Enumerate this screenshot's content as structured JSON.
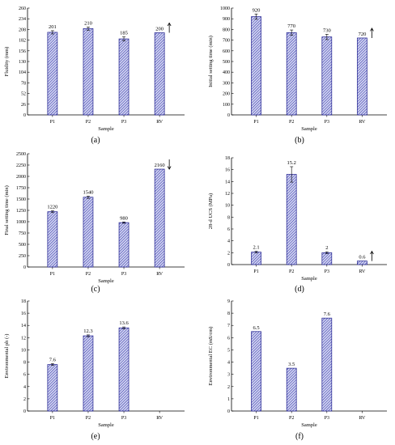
{
  "chart_data": [
    {
      "type": "bar",
      "panel_label": "(a)",
      "categories": [
        "P1",
        "P2",
        "P3",
        "RV"
      ],
      "values": [
        201,
        210,
        185,
        200
      ],
      "value_labels": [
        "201",
        "210",
        "185",
        "200"
      ],
      "errors": [
        4,
        4,
        5,
        0
      ],
      "xlabel": "Sample",
      "ylabel": "Fluidity (mm)",
      "ylim": [
        0,
        260
      ],
      "yticks": [
        0,
        26,
        52,
        78,
        104,
        130,
        156,
        182,
        208,
        234,
        260
      ],
      "arrow": {
        "category": "RV",
        "direction": "up"
      }
    },
    {
      "type": "bar",
      "panel_label": "(b)",
      "categories": [
        "P1",
        "P2",
        "P3",
        "RV"
      ],
      "values": [
        920,
        770,
        730,
        720
      ],
      "value_labels": [
        "920",
        "770",
        "730",
        "720"
      ],
      "errors": [
        25,
        25,
        25,
        0
      ],
      "xlabel": "Sample",
      "ylabel": "Initial setting time (min)",
      "ylim": [
        0,
        1000
      ],
      "yticks": [
        0,
        100,
        200,
        300,
        400,
        500,
        600,
        700,
        800,
        900,
        1000
      ],
      "arrow": {
        "category": "RV",
        "direction": "up"
      }
    },
    {
      "type": "bar",
      "panel_label": "(c)",
      "categories": [
        "P1",
        "P2",
        "P3",
        "RV"
      ],
      "values": [
        1220,
        1540,
        980,
        2160
      ],
      "value_labels": [
        "1220",
        "1540",
        "980",
        "2160"
      ],
      "errors": [
        20,
        25,
        15,
        0
      ],
      "xlabel": "Sample",
      "ylabel": "Final setting time (min)",
      "ylim": [
        0,
        2500
      ],
      "yticks": [
        0,
        250,
        500,
        750,
        1000,
        1250,
        1500,
        1750,
        2000,
        2250,
        2500
      ],
      "arrow": {
        "category": "RV",
        "direction": "down"
      }
    },
    {
      "type": "bar",
      "panel_label": "(d)",
      "categories": [
        "P1",
        "P2",
        "P3",
        "RV"
      ],
      "values": [
        2.1,
        15.2,
        2,
        0.6
      ],
      "value_labels": [
        "2.1",
        "15.2",
        "2",
        "0.6"
      ],
      "errors": [
        0.15,
        1.3,
        0.15,
        0
      ],
      "xlabel": "Sample",
      "ylabel": "28-d UCS (MPa)",
      "ylim": [
        0,
        18
      ],
      "yticks": [
        0,
        2,
        4,
        6,
        8,
        10,
        12,
        14,
        16,
        18
      ],
      "arrow": {
        "category": "RV",
        "direction": "up"
      }
    },
    {
      "type": "bar",
      "panel_label": "(e)",
      "categories": [
        "P1",
        "P2",
        "P3",
        "RV"
      ],
      "values": [
        7.6,
        12.3,
        13.6,
        null
      ],
      "value_labels": [
        "7.6",
        "12.3",
        "13.6",
        ""
      ],
      "errors": [
        0.15,
        0.15,
        0.15,
        0
      ],
      "xlabel": "Sample",
      "ylabel": "Environmental ph (-)",
      "ylim": [
        0,
        18
      ],
      "yticks": [
        0,
        2,
        4,
        6,
        8,
        10,
        12,
        14,
        16,
        18
      ],
      "arrow": null
    },
    {
      "type": "bar",
      "panel_label": "(f)",
      "categories": [
        "P1",
        "P2",
        "P3",
        "RV"
      ],
      "values": [
        6.5,
        3.5,
        7.6,
        null
      ],
      "value_labels": [
        "6.5",
        "3.5",
        "7.6",
        ""
      ],
      "errors": [
        0,
        0,
        0,
        0
      ],
      "xlabel": "Sample",
      "ylabel": "Environmental EC (mS/cm)",
      "ylim": [
        0,
        9
      ],
      "yticks": [
        0,
        1,
        2,
        3,
        4,
        5,
        6,
        7,
        8,
        9
      ],
      "arrow": null
    }
  ],
  "colors": {
    "bar_fill": "#d4d7f2",
    "bar_stroke": "#1c1c8c",
    "hatch": "#2a2aa6",
    "axis": "#000000"
  }
}
